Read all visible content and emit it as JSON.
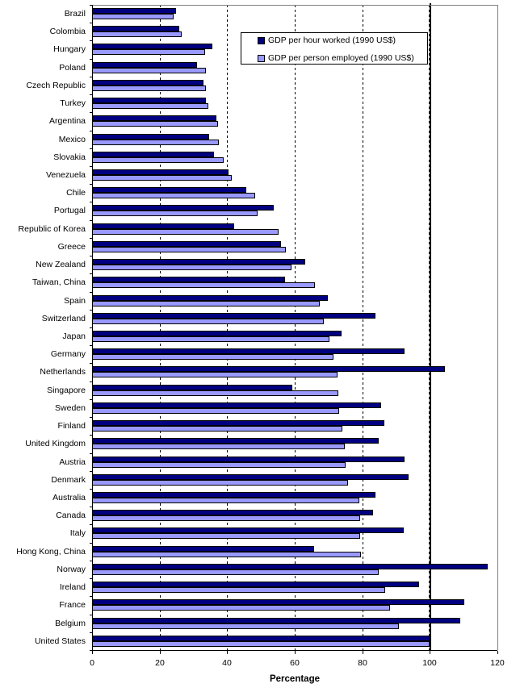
{
  "chart_data": {
    "type": "bar",
    "orientation": "horizontal",
    "title": "",
    "xlabel": "Percentage",
    "xlim": [
      0,
      120
    ],
    "xticks": [
      0,
      20,
      40,
      60,
      80,
      100,
      120
    ],
    "grid": "vertical dashed gridlines at 20, 40, 60, 80; bold solid reference line at 100",
    "dashed_gridline_values": [
      20,
      40,
      60,
      80
    ],
    "reference_line_value": 100,
    "legend_position": "top-center",
    "background_color": "#ffffff",
    "plot_border_color": "#808080",
    "categories": [
      "Brazil",
      "Colombia",
      "Hungary",
      "Poland",
      "Czech Republic",
      "Turkey",
      "Argentina",
      "Mexico",
      "Slovakia",
      "Venezuela",
      "Chile",
      "Portugal",
      "Republic of Korea",
      "Greece",
      "New Zealand",
      "Taiwan, China",
      "Spain",
      "Switzerland",
      "Japan",
      "Germany",
      "Netherlands",
      "Singapore",
      "Sweden",
      "Finland",
      "United Kingdom",
      "Austria",
      "Denmark",
      "Australia",
      "Canada",
      "Italy",
      "Hong Kong, China",
      "Norway",
      "Ireland",
      "France",
      "Belgium",
      "United States"
    ],
    "series": [
      {
        "name": "GDP per hour worked (1990 US$)",
        "color": "#000080",
        "values": [
          24.8,
          25.9,
          35.7,
          31.1,
          32.9,
          33.6,
          36.9,
          34.7,
          36.2,
          40.3,
          45.7,
          53.8,
          42.1,
          56.0,
          63.2,
          57.2,
          69.9,
          83.9,
          73.9,
          92.4,
          104.4,
          59.4,
          85.6,
          86.6,
          84.9,
          92.5,
          93.6,
          83.8,
          83.3,
          92.3,
          65.7,
          117.1,
          96.9,
          110.1,
          108.9,
          100.0
        ]
      },
      {
        "name": "GDP per person employed (1990 US$)",
        "color": "#9999FF",
        "values": [
          24.2,
          26.6,
          33.4,
          33.6,
          33.8,
          34.5,
          37.3,
          37.6,
          39.0,
          41.4,
          48.2,
          49.1,
          55.2,
          57.4,
          59.1,
          66.0,
          67.5,
          68.7,
          70.2,
          71.4,
          72.6,
          73.0,
          73.1,
          74.1,
          74.8,
          75.0,
          75.8,
          79.1,
          79.3,
          79.4,
          79.7,
          84.9,
          86.8,
          88.1,
          90.8,
          100.0
        ]
      }
    ]
  }
}
